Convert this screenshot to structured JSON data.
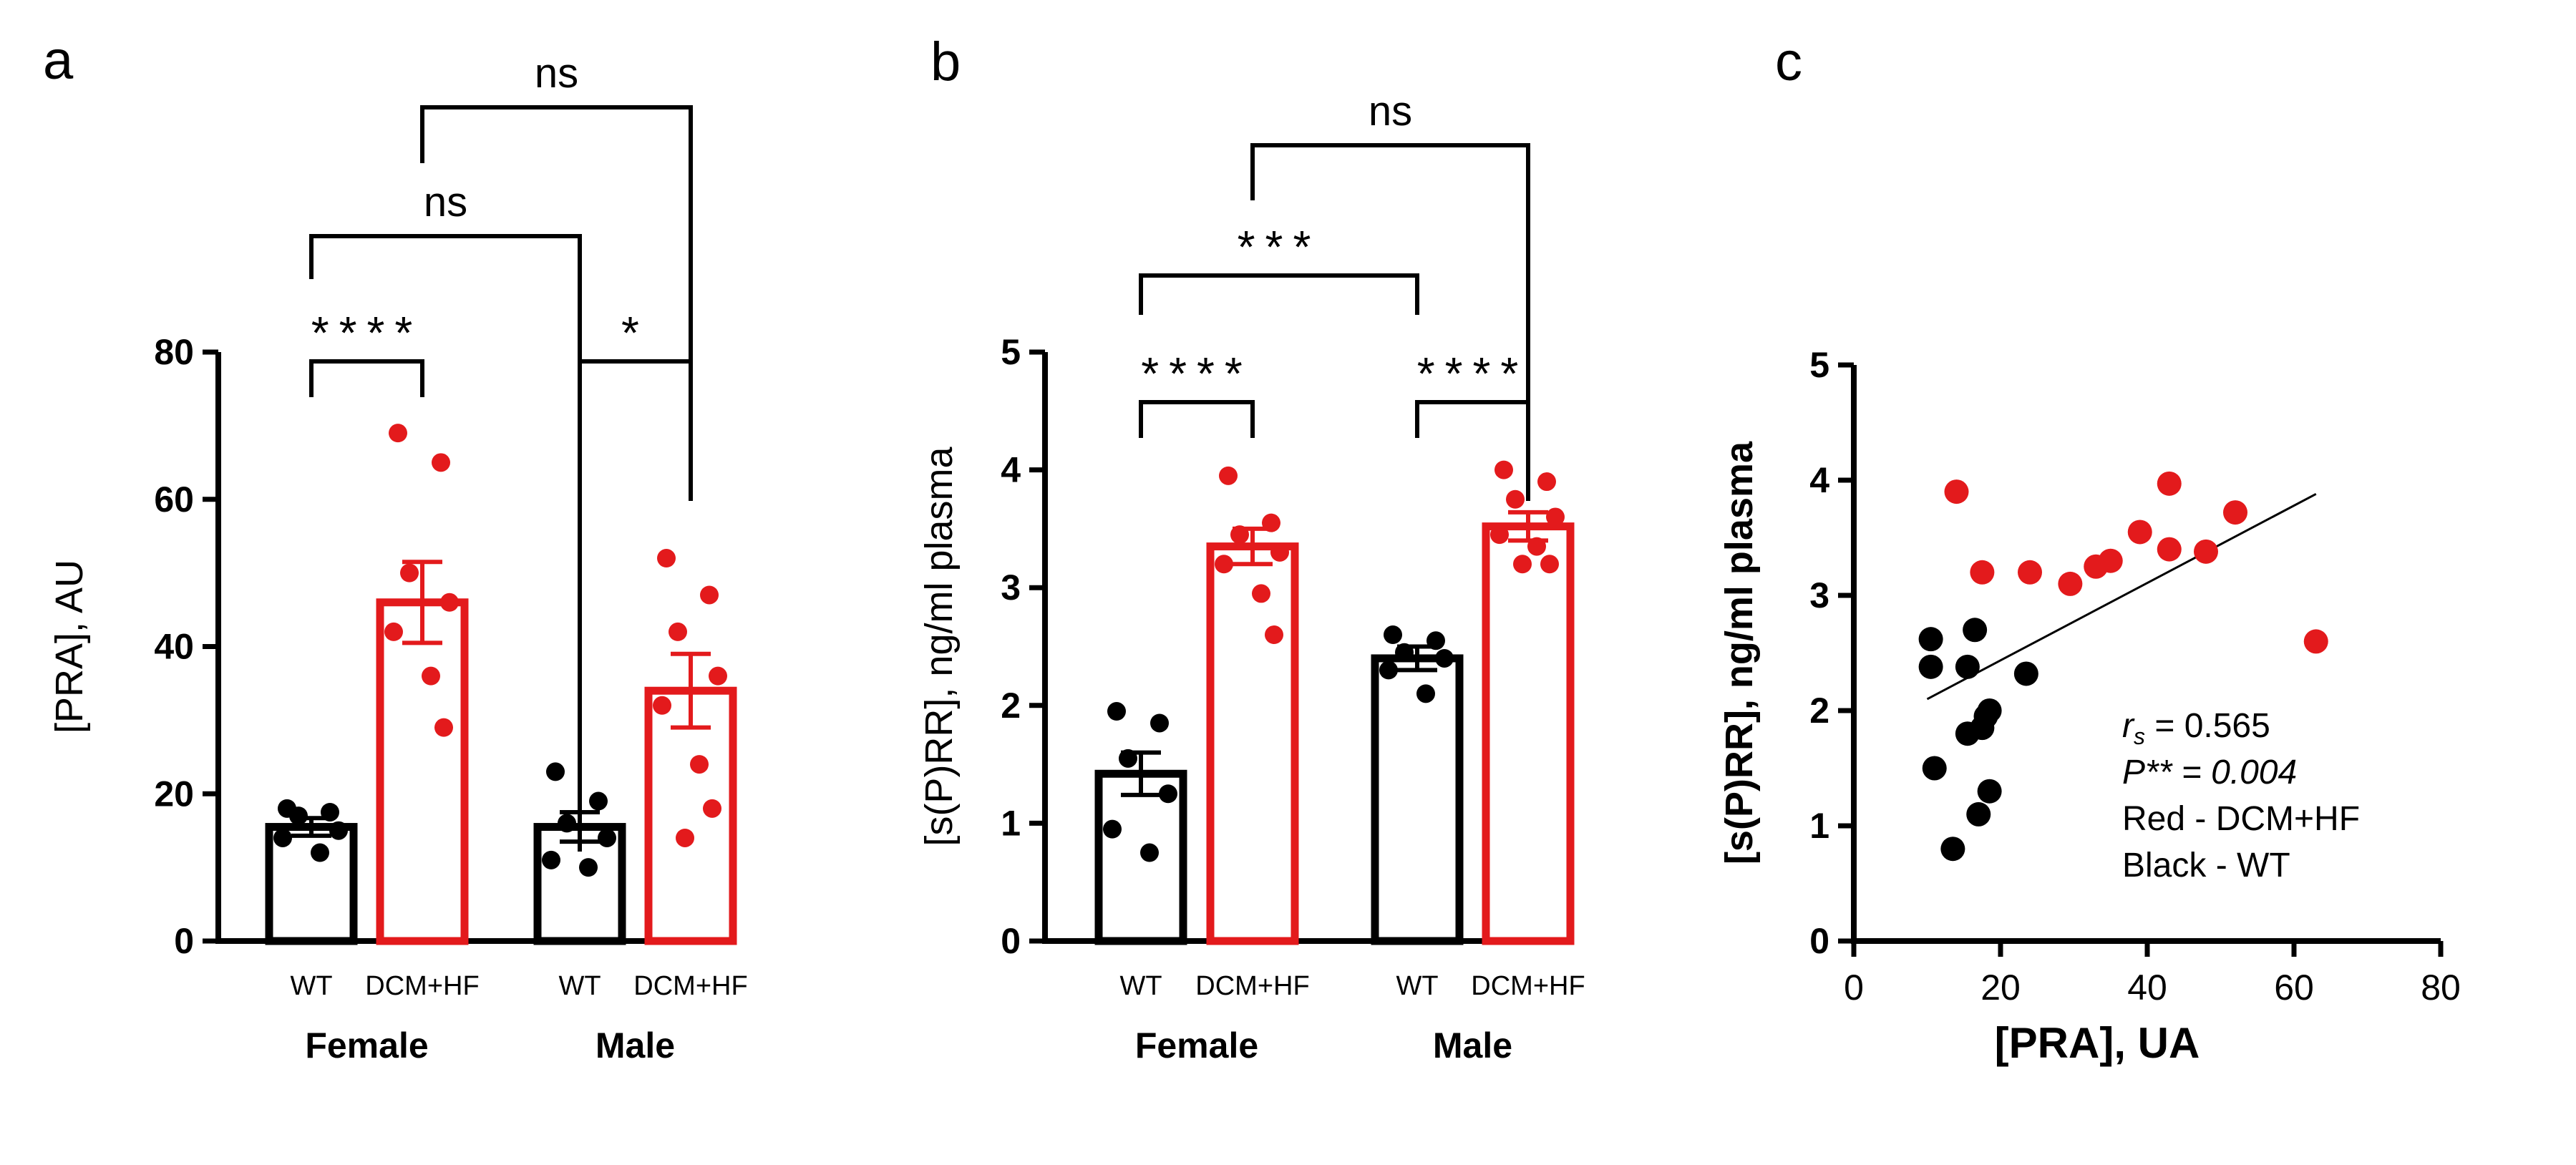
{
  "colors": {
    "wt": "#000000",
    "dcm": "#e31a1c",
    "axis": "#000000",
    "bracket": "#000000"
  },
  "panels": {
    "a": {
      "label": "a"
    },
    "b": {
      "label": "b"
    },
    "c": {
      "label": "c"
    }
  },
  "chart_data": [
    {
      "panel": "a",
      "type": "bar",
      "ylabel": "[PRA], AU",
      "ylim": [
        0,
        80
      ],
      "yticks": [
        0,
        20,
        40,
        60,
        80
      ],
      "groups": [
        "Female",
        "Male"
      ],
      "categories": [
        "WT",
        "DCM+HF",
        "WT",
        "DCM+HF"
      ],
      "bars": [
        {
          "group": "Female",
          "category": "WT",
          "color_key": "wt",
          "mean": 15.5,
          "sem": 1.2,
          "points": [
            18,
            17.5,
            17,
            15,
            14,
            12
          ]
        },
        {
          "group": "Female",
          "category": "DCM+HF",
          "color_key": "dcm",
          "mean": 46,
          "sem": 5.5,
          "points": [
            69,
            65,
            50,
            46,
            42,
            36,
            29
          ]
        },
        {
          "group": "Male",
          "category": "WT",
          "color_key": "wt",
          "mean": 15.5,
          "sem": 2.0,
          "points": [
            23,
            19,
            16,
            14,
            11,
            10
          ]
        },
        {
          "group": "Male",
          "category": "DCM+HF",
          "color_key": "dcm",
          "mean": 34,
          "sem": 5,
          "points": [
            52,
            47,
            42,
            36,
            32,
            24,
            18,
            14
          ]
        }
      ],
      "comparisons": [
        {
          "from": 0,
          "to": 1,
          "label": "****",
          "level": 1
        },
        {
          "from": 2,
          "to": 3,
          "label": "*",
          "level": 1
        },
        {
          "from": 0,
          "to": 2,
          "label": "ns",
          "level": 2
        },
        {
          "from": 1,
          "to": 3,
          "label": "ns",
          "level": 3
        }
      ]
    },
    {
      "panel": "b",
      "type": "bar",
      "ylabel": "[s(P)RR], ng/ml plasma",
      "ylim": [
        0,
        5
      ],
      "yticks": [
        0,
        1,
        2,
        3,
        4,
        5
      ],
      "groups": [
        "Female",
        "Male"
      ],
      "categories": [
        "WT",
        "DCM+HF",
        "WT",
        "DCM+HF"
      ],
      "bars": [
        {
          "group": "Female",
          "category": "WT",
          "color_key": "wt",
          "mean": 1.42,
          "sem": 0.18,
          "points": [
            1.95,
            1.85,
            1.55,
            1.25,
            0.95,
            0.75
          ]
        },
        {
          "group": "Female",
          "category": "DCM+HF",
          "color_key": "dcm",
          "mean": 3.35,
          "sem": 0.15,
          "points": [
            3.95,
            3.55,
            3.45,
            3.3,
            3.2,
            2.95,
            2.6
          ]
        },
        {
          "group": "Male",
          "category": "WT",
          "color_key": "wt",
          "mean": 2.4,
          "sem": 0.1,
          "points": [
            2.6,
            2.55,
            2.45,
            2.4,
            2.3,
            2.1
          ]
        },
        {
          "group": "Male",
          "category": "DCM+HF",
          "color_key": "dcm",
          "mean": 3.52,
          "sem": 0.12,
          "points": [
            4.0,
            3.9,
            3.75,
            3.6,
            3.45,
            3.35,
            3.2,
            3.2
          ]
        }
      ],
      "comparisons": [
        {
          "from": 0,
          "to": 1,
          "label": "****",
          "level": 1
        },
        {
          "from": 2,
          "to": 3,
          "label": "****",
          "level": 1
        },
        {
          "from": 0,
          "to": 2,
          "label": "***",
          "level": 2
        },
        {
          "from": 1,
          "to": 3,
          "label": "ns",
          "level": 3
        }
      ]
    },
    {
      "panel": "c",
      "type": "scatter",
      "xlabel": "[PRA], UA",
      "ylabel": "[s(P)RR], ng/ml plasma",
      "xlim": [
        0,
        80
      ],
      "ylim": [
        0,
        5
      ],
      "xticks": [
        0,
        20,
        40,
        60,
        80
      ],
      "yticks": [
        0,
        1,
        2,
        3,
        4,
        5
      ],
      "series": [
        {
          "name": "DCM+HF",
          "color_key": "dcm",
          "points": [
            [
              14,
              3.9
            ],
            [
              17.5,
              3.2
            ],
            [
              24,
              3.2
            ],
            [
              29.5,
              3.1
            ],
            [
              33,
              3.25
            ],
            [
              35,
              3.3
            ],
            [
              39,
              3.55
            ],
            [
              43,
              3.4
            ],
            [
              43,
              3.97
            ],
            [
              48,
              3.38
            ],
            [
              52,
              3.72
            ],
            [
              63,
              2.6
            ]
          ]
        },
        {
          "name": "WT",
          "color_key": "wt",
          "points": [
            [
              10.5,
              2.62
            ],
            [
              10.5,
              2.38
            ],
            [
              11,
              1.5
            ],
            [
              13.5,
              0.8
            ],
            [
              15.5,
              1.8
            ],
            [
              15.5,
              2.38
            ],
            [
              16.5,
              2.7
            ],
            [
              17,
              1.1
            ],
            [
              17.5,
              1.85
            ],
            [
              18,
              1.95
            ],
            [
              18.5,
              2.0
            ],
            [
              18.5,
              1.3
            ],
            [
              23.5,
              2.32
            ]
          ]
        }
      ],
      "fit_line": {
        "from": [
          10,
          2.1
        ],
        "to": [
          63,
          3.88
        ]
      },
      "annotations": {
        "rs_symbol": "r",
        "rs_sub": "s",
        "rs_value": "= 0.565",
        "p_text": "P** = 0.004",
        "legend_red": "Red - DCM+HF",
        "legend_black": "Black - WT"
      }
    }
  ]
}
